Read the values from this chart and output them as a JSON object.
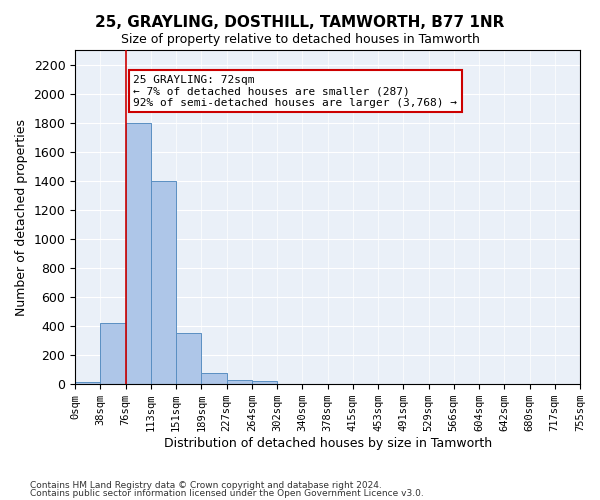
{
  "title": "25, GRAYLING, DOSTHILL, TAMWORTH, B77 1NR",
  "subtitle": "Size of property relative to detached houses in Tamworth",
  "xlabel": "Distribution of detached houses by size in Tamworth",
  "ylabel": "Number of detached properties",
  "bin_labels": [
    "0sqm",
    "38sqm",
    "76sqm",
    "113sqm",
    "151sqm",
    "189sqm",
    "227sqm",
    "264sqm",
    "302sqm",
    "340sqm",
    "378sqm",
    "415sqm",
    "453sqm",
    "491sqm",
    "529sqm",
    "566sqm",
    "604sqm",
    "642sqm",
    "680sqm",
    "717sqm",
    "755sqm"
  ],
  "bar_values": [
    15,
    420,
    1800,
    1400,
    350,
    80,
    30,
    20,
    0,
    0,
    0,
    0,
    0,
    0,
    0,
    0,
    0,
    0,
    0,
    0
  ],
  "bar_color": "#aec6e8",
  "bar_edge_color": "#5a8fc2",
  "property_line_x": 72,
  "property_line_bin": 2,
  "annotation_text": "25 GRAYLING: 72sqm\n← 7% of detached houses are smaller (287)\n92% of semi-detached houses are larger (3,768) →",
  "annotation_box_color": "#ffffff",
  "annotation_box_edge": "#cc0000",
  "ylim": [
    0,
    2300
  ],
  "yticks": [
    0,
    200,
    400,
    600,
    800,
    1000,
    1200,
    1400,
    1600,
    1800,
    2000,
    2200
  ],
  "background_color": "#eaf0f8",
  "footer_line1": "Contains HM Land Registry data © Crown copyright and database right 2024.",
  "footer_line2": "Contains public sector information licensed under the Open Government Licence v3.0."
}
